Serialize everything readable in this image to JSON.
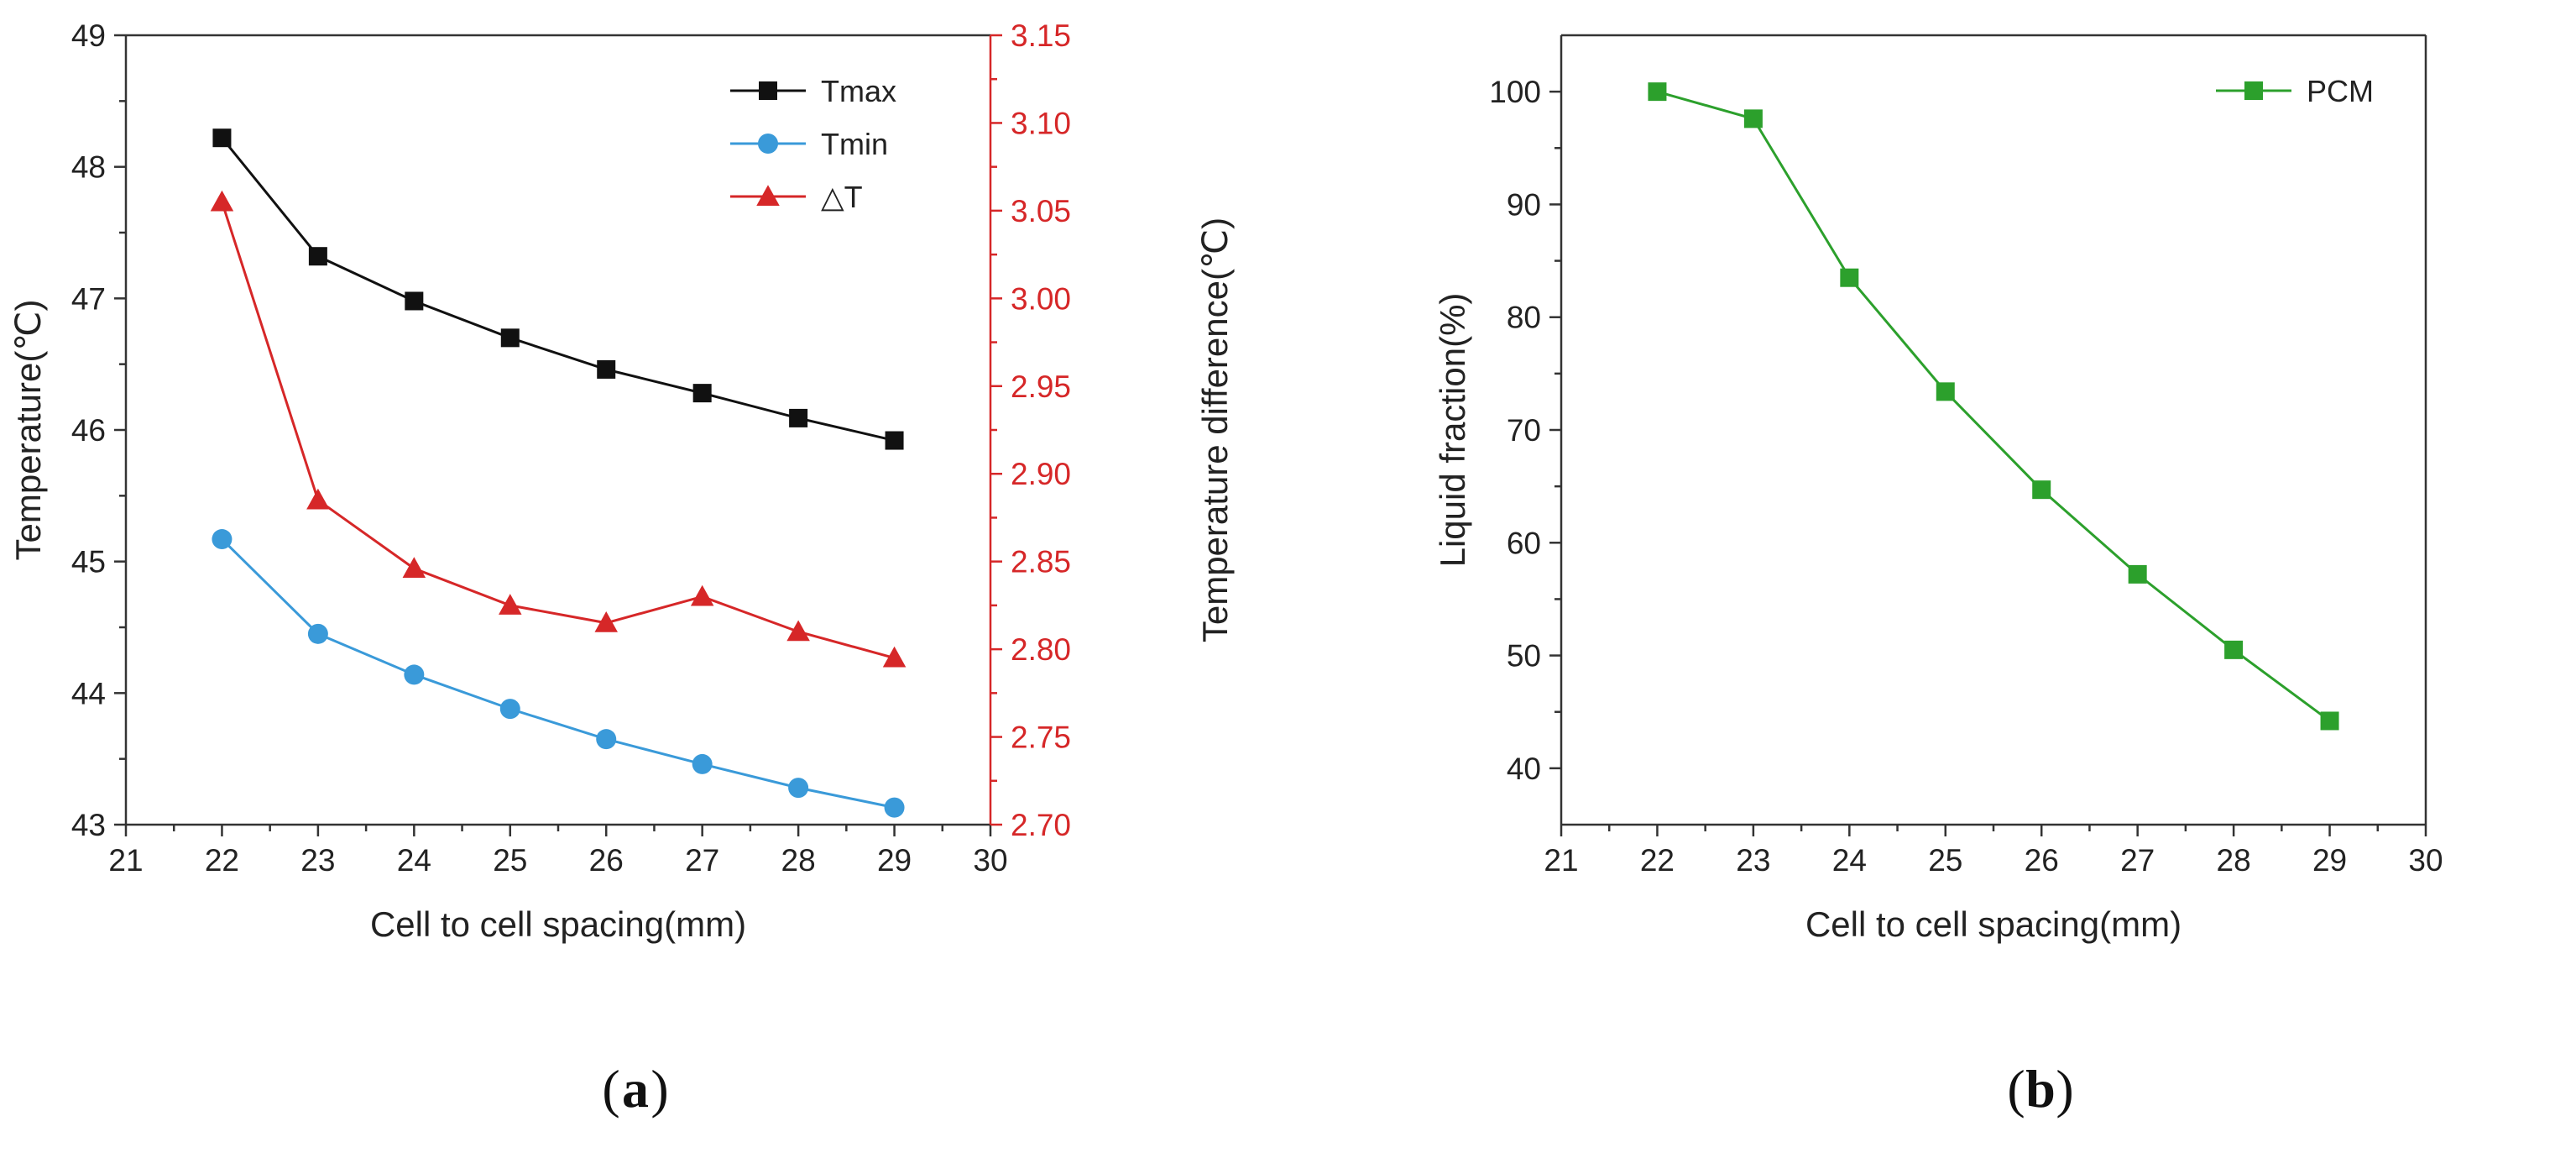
{
  "chart_data": [
    {
      "type": "line",
      "panel_label": "a",
      "xlabel": "Cell to cell spacing(mm)",
      "ylabel": "Temperature(℃)",
      "y2label": "Temperature difference(℃)",
      "xlim": [
        21,
        30
      ],
      "ylim": [
        43,
        49
      ],
      "y2lim": [
        2.7,
        3.15
      ],
      "xticks": [
        "21",
        "22",
        "23",
        "24",
        "25",
        "26",
        "27",
        "28",
        "29",
        "30"
      ],
      "yticks": [
        "43",
        "44",
        "45",
        "46",
        "47",
        "48",
        "49"
      ],
      "y2ticks": [
        "2.70",
        "2.75",
        "2.80",
        "2.85",
        "2.90",
        "2.95",
        "3.00",
        "3.05",
        "3.10",
        "3.15"
      ],
      "x": [
        22,
        23,
        24,
        25,
        26,
        27,
        28,
        29
      ],
      "legend_position": "top-right",
      "series": [
        {
          "name": "Tmax",
          "axis": "left",
          "marker": "square",
          "color": "#111111",
          "values": [
            48.22,
            47.32,
            46.98,
            46.7,
            46.46,
            46.28,
            46.09,
            45.92
          ]
        },
        {
          "name": "Tmin",
          "axis": "left",
          "marker": "circle",
          "color": "#3a9ad9",
          "values": [
            45.17,
            44.45,
            44.14,
            43.88,
            43.65,
            43.46,
            43.28,
            43.13
          ]
        },
        {
          "name": "△T",
          "axis": "right",
          "marker": "triangle",
          "color": "#d62728",
          "values": [
            3.055,
            2.885,
            2.846,
            2.825,
            2.815,
            2.83,
            2.81,
            2.795
          ]
        }
      ]
    },
    {
      "type": "line",
      "panel_label": "b",
      "xlabel": "Cell to cell spacing(mm)",
      "ylabel": "Liquid fraction(%)",
      "xlim": [
        21,
        30
      ],
      "ylim": [
        35,
        105
      ],
      "xticks": [
        "21",
        "22",
        "23",
        "24",
        "25",
        "26",
        "27",
        "28",
        "29",
        "30"
      ],
      "yticks": [
        "40",
        "50",
        "60",
        "70",
        "80",
        "90",
        "100"
      ],
      "x": [
        22,
        23,
        24,
        25,
        26,
        27,
        28,
        29
      ],
      "legend_position": "top-right",
      "series": [
        {
          "name": "PCM",
          "axis": "left",
          "marker": "square",
          "color": "#2ca02c",
          "values": [
            100.0,
            97.6,
            83.5,
            73.4,
            64.7,
            57.2,
            50.5,
            44.2
          ]
        }
      ]
    }
  ],
  "captions": {
    "a": "a",
    "b": "b"
  }
}
